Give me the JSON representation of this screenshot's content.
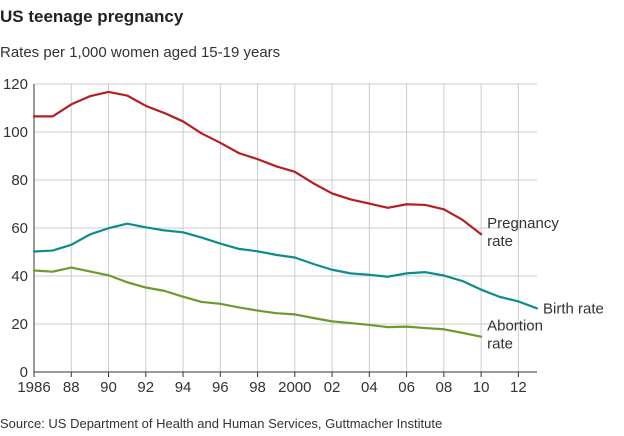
{
  "chart_data": {
    "type": "line",
    "title": "US teenage pregnancy",
    "subtitle": "Rates per 1,000 women aged 15-19 years",
    "source": "Source: US Department of Health and Human Services, Guttmacher Institute",
    "xlabel": "",
    "ylabel": "",
    "xlim": [
      1986,
      2013
    ],
    "ylim": [
      0,
      120
    ],
    "grid": true,
    "x_ticks": [
      1986,
      1988,
      1990,
      1992,
      1994,
      1996,
      1998,
      2000,
      2002,
      2004,
      2006,
      2008,
      2010,
      2012
    ],
    "x_tick_labels": [
      "1986",
      "88",
      "90",
      "92",
      "94",
      "96",
      "98",
      "2000",
      "02",
      "04",
      "06",
      "08",
      "10",
      "12"
    ],
    "y_ticks": [
      0,
      20,
      40,
      60,
      80,
      100,
      120
    ],
    "y_tick_labels": [
      "0",
      "20",
      "40",
      "60",
      "80",
      "100",
      "120"
    ],
    "series": [
      {
        "name": "Pregnancy rate",
        "label_lines": [
          "Pregnancy",
          "rate"
        ],
        "color": "#b41f24",
        "x": [
          1986,
          1987,
          1988,
          1989,
          1990,
          1991,
          1992,
          1993,
          1994,
          1995,
          1996,
          1997,
          1998,
          1999,
          2000,
          2001,
          2002,
          2003,
          2004,
          2005,
          2006,
          2007,
          2008,
          2009,
          2010
        ],
        "y": [
          106.5,
          106.5,
          111.5,
          114.9,
          116.7,
          115.2,
          110.9,
          107.9,
          104.4,
          99.4,
          95.5,
          91.2,
          88.7,
          85.7,
          83.4,
          78.6,
          74.4,
          71.9,
          70.2,
          68.4,
          69.9,
          69.6,
          67.8,
          63.4,
          57.4
        ]
      },
      {
        "name": "Birth rate",
        "label_lines": [
          "Birth rate"
        ],
        "color": "#0d8c8c",
        "x": [
          1986,
          1987,
          1988,
          1989,
          1990,
          1991,
          1992,
          1993,
          1994,
          1995,
          1996,
          1997,
          1998,
          1999,
          2000,
          2001,
          2002,
          2003,
          2004,
          2005,
          2006,
          2007,
          2008,
          2009,
          2010,
          2011,
          2012,
          2013
        ],
        "y": [
          50.2,
          50.6,
          53.0,
          57.3,
          59.9,
          61.8,
          60.3,
          59.0,
          58.2,
          56.0,
          53.5,
          51.3,
          50.3,
          48.8,
          47.7,
          45.0,
          42.6,
          41.1,
          40.5,
          39.7,
          41.1,
          41.6,
          40.2,
          37.9,
          34.3,
          31.3,
          29.4,
          26.5
        ]
      },
      {
        "name": "Abortion rate",
        "label_lines": [
          "Abortion",
          "rate"
        ],
        "color": "#6b9a2d",
        "x": [
          1986,
          1987,
          1988,
          1989,
          1990,
          1991,
          1992,
          1993,
          1994,
          1995,
          1996,
          1997,
          1998,
          1999,
          2000,
          2001,
          2002,
          2003,
          2004,
          2005,
          2006,
          2007,
          2008,
          2009,
          2010
        ],
        "y": [
          42.3,
          41.8,
          43.5,
          41.9,
          40.3,
          37.4,
          35.2,
          33.8,
          31.4,
          29.2,
          28.4,
          26.9,
          25.6,
          24.5,
          24.0,
          22.5,
          21.1,
          20.4,
          19.6,
          18.7,
          18.9,
          18.3,
          17.8,
          16.3,
          14.7
        ]
      }
    ]
  }
}
